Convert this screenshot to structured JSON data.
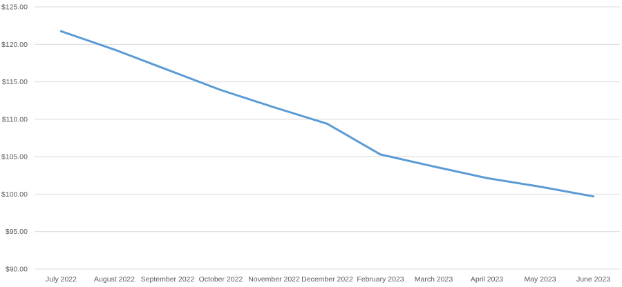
{
  "chart_data": {
    "type": "line",
    "title": "",
    "xlabel": "",
    "ylabel": "",
    "categories": [
      "July 2022",
      "August 2022",
      "September 2022",
      "October 2022",
      "November 2022",
      "December 2022",
      "February 2023",
      "March 2023",
      "April 2023",
      "May 2023",
      "June 2023"
    ],
    "series": [
      {
        "values": [
          121.75,
          119.3,
          116.6,
          113.9,
          111.6,
          109.4,
          105.3,
          103.7,
          102.15,
          101.0,
          99.7
        ],
        "color": "#5b9bd5"
      }
    ],
    "ylim": [
      90,
      125
    ],
    "yticks": [
      90,
      95,
      100,
      105,
      110,
      115,
      120,
      125
    ],
    "ytick_labels": [
      "$90.00",
      "$95.00",
      "$100.00",
      "$105.00",
      "$110.00",
      "$115.00",
      "$120.00",
      "$125.00"
    ],
    "grid": true,
    "legend": "none"
  }
}
